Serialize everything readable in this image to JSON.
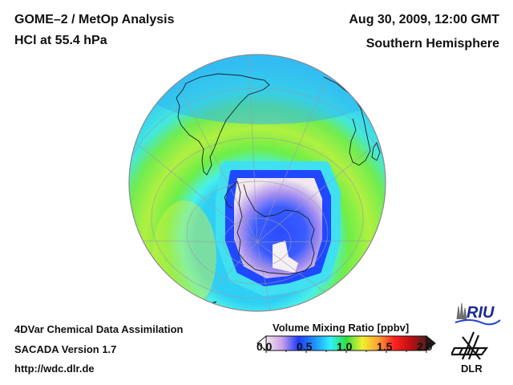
{
  "header": {
    "title": "GOME–2 / MetOp Analysis",
    "subtitle": "HCl at 55.4 hPa",
    "date": "Aug 30, 2009, 12:00 GMT",
    "region": "Southern Hemisphere"
  },
  "footer": {
    "line1": "4DVar Chemical Data Assimilation",
    "line2": "SACADA Version 1.7",
    "line3": "http://wdc.dlr.de"
  },
  "colorbar": {
    "title": "Volume Mixing Ratio [ppbv]",
    "ticks": [
      "0.0",
      "0.5",
      "1.0",
      "1.5",
      "2.0"
    ],
    "range": [
      0.0,
      2.0
    ],
    "stops": [
      "#f2e6ea",
      "#c9a0e6",
      "#1e3cff",
      "#1e90ff",
      "#30f0ff",
      "#30e040",
      "#f0f030",
      "#ffa030",
      "#ff2020",
      "#c01010",
      "#502020"
    ]
  },
  "logos": {
    "riu": "RIU",
    "dlr": "DLR"
  },
  "map": {
    "projection": "orthographic",
    "field_colors": {
      "outer": "#39c6f5",
      "ring_cyan": "#3ff0f5",
      "ring_green": "#7cf040",
      "ring_yellow": "#c8f040",
      "vortex_edge": "#2050ff",
      "vortex_inner": "#f2e8ee",
      "vortex_purple": "#9a80f0",
      "vortex_blue": "#2a5cff"
    }
  }
}
